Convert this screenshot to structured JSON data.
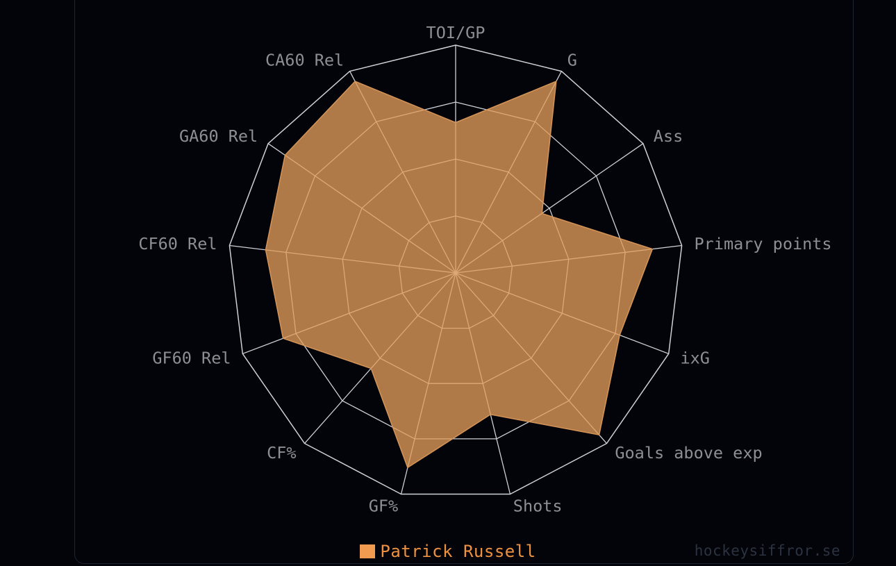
{
  "page": {
    "background_color": "#030409",
    "panel_border_color": "#1d2533"
  },
  "chart_data": {
    "type": "radar",
    "title": "",
    "categories": [
      "TOI/GP",
      "G",
      "Ass",
      "Primary points",
      "ixG",
      "Goals above exp",
      "Shots",
      "GF%",
      "CF%",
      "GF60 Rel",
      "CF60 Rel",
      "GA60 Rel",
      "CA60 Rel"
    ],
    "series": [
      {
        "name": "Patrick Russell",
        "values": [
          0.66,
          0.95,
          0.46,
          0.87,
          0.77,
          0.95,
          0.64,
          0.88,
          0.56,
          0.81,
          0.84,
          0.91,
          0.95
        ],
        "fill_color": "rgba(225,156,90,0.78)",
        "stroke_color": "#d59457"
      }
    ],
    "axis_range": [
      0,
      1
    ],
    "grid_levels": [
      0.25,
      0.5,
      0.75,
      1
    ],
    "grid_on": true,
    "grid_color": "#ccd1d7",
    "axis_label_color": "#8e8e93",
    "legend_position": "bottom",
    "tick_labels_shown": false
  },
  "legend": {
    "label": "Patrick Russell",
    "swatch_color": "#f09b4f",
    "text_color": "#ee9140"
  },
  "watermark": {
    "text": "hockeysiffror.se",
    "color": "#2b3240"
  }
}
